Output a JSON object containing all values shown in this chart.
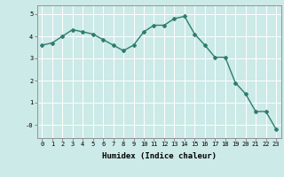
{
  "x": [
    0,
    1,
    2,
    3,
    4,
    5,
    6,
    7,
    8,
    9,
    10,
    11,
    12,
    13,
    14,
    15,
    16,
    17,
    18,
    19,
    20,
    21,
    22,
    23
  ],
  "y": [
    3.6,
    3.7,
    4.0,
    4.3,
    4.2,
    4.1,
    3.85,
    3.6,
    3.35,
    3.6,
    4.2,
    4.5,
    4.5,
    4.8,
    4.9,
    4.1,
    3.6,
    3.05,
    3.05,
    1.9,
    1.4,
    0.6,
    0.6,
    -0.2
  ],
  "line_color": "#2e7d6e",
  "marker": "D",
  "marker_size": 2.0,
  "bg_color": "#cceae7",
  "grid_color": "#ffffff",
  "xlabel": "Humidex (Indice chaleur)",
  "ylim": [
    -0.6,
    5.4
  ],
  "xlim": [
    -0.5,
    23.5
  ],
  "yticks": [
    0,
    1,
    2,
    3,
    4,
    5
  ],
  "ytick_labels": [
    "-0",
    "1",
    "2",
    "3",
    "4",
    "5"
  ],
  "xticks": [
    0,
    1,
    2,
    3,
    4,
    5,
    6,
    7,
    8,
    9,
    10,
    11,
    12,
    13,
    14,
    15,
    16,
    17,
    18,
    19,
    20,
    21,
    22,
    23
  ],
  "axis_fontsize": 6.5,
  "tick_fontsize": 5.0,
  "line_width": 1.0
}
